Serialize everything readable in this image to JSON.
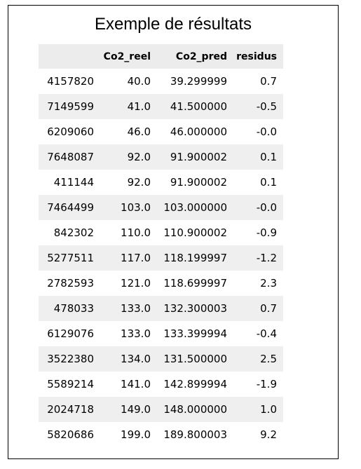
{
  "title": "Exemple de résultats",
  "table": {
    "columns": [
      "",
      "Co2_reel",
      "Co2_pred",
      "residus"
    ],
    "rows": [
      {
        "index": "4157820",
        "co2_reel": "40.0",
        "co2_pred": "39.299999",
        "residus": "0.7"
      },
      {
        "index": "7149599",
        "co2_reel": "41.0",
        "co2_pred": "41.500000",
        "residus": "-0.5"
      },
      {
        "index": "6209060",
        "co2_reel": "46.0",
        "co2_pred": "46.000000",
        "residus": "-0.0"
      },
      {
        "index": "7648087",
        "co2_reel": "92.0",
        "co2_pred": "91.900002",
        "residus": "0.1"
      },
      {
        "index": "411144",
        "co2_reel": "92.0",
        "co2_pred": "91.900002",
        "residus": "0.1"
      },
      {
        "index": "7464499",
        "co2_reel": "103.0",
        "co2_pred": "103.000000",
        "residus": "-0.0"
      },
      {
        "index": "842302",
        "co2_reel": "110.0",
        "co2_pred": "110.900002",
        "residus": "-0.9"
      },
      {
        "index": "5277511",
        "co2_reel": "117.0",
        "co2_pred": "118.199997",
        "residus": "-1.2"
      },
      {
        "index": "2782593",
        "co2_reel": "121.0",
        "co2_pred": "118.699997",
        "residus": "2.3"
      },
      {
        "index": "478033",
        "co2_reel": "133.0",
        "co2_pred": "132.300003",
        "residus": "0.7"
      },
      {
        "index": "6129076",
        "co2_reel": "133.0",
        "co2_pred": "133.399994",
        "residus": "-0.4"
      },
      {
        "index": "3522380",
        "co2_reel": "134.0",
        "co2_pred": "131.500000",
        "residus": "2.5"
      },
      {
        "index": "5589214",
        "co2_reel": "141.0",
        "co2_pred": "142.899994",
        "residus": "-1.9"
      },
      {
        "index": "2024718",
        "co2_reel": "149.0",
        "co2_pred": "148.000000",
        "residus": "1.0"
      },
      {
        "index": "5820686",
        "co2_reel": "199.0",
        "co2_pred": "189.800003",
        "residus": "9.2"
      }
    ]
  }
}
